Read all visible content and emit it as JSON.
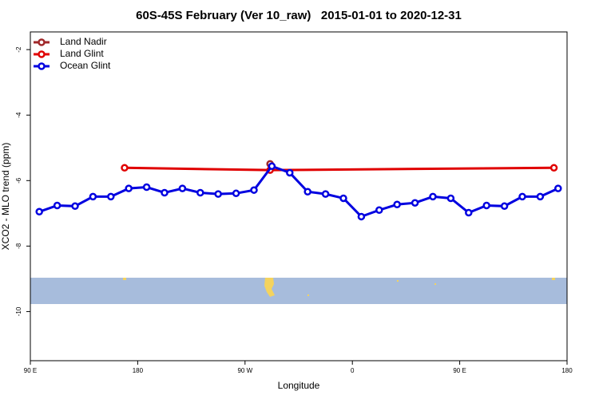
{
  "chart_data": {
    "type": "line",
    "title": "60S-45S February (Ver 10_raw)   2015-01-01 to 2020-12-31",
    "xlabel": "Longitude",
    "ylabel": "XCO2 - MLO trend (ppm)",
    "xlim": [
      90,
      540
    ],
    "xticks": [
      {
        "value": 90,
        "label": "90 E"
      },
      180,
      {
        "value": 270,
        "label": "90 W"
      },
      {
        "value": 360,
        "label": "0"
      },
      {
        "value": 450,
        "label": "90 E"
      },
      {
        "value": 540,
        "label": "180"
      }
    ],
    "ylim": [
      -11.5,
      -1.46
    ],
    "yticks": [
      -2,
      -4,
      -6,
      -8,
      -10
    ],
    "legend": "top-left",
    "series": [
      {
        "name": "Land Nadir",
        "color": "#a0282a",
        "x": [
          291
        ],
        "values": [
          -5.49
        ]
      },
      {
        "name": "Land Glint",
        "color": "#e00000",
        "x": [
          169,
          291,
          529
        ],
        "values": [
          -5.61,
          -5.68,
          -5.61
        ]
      },
      {
        "name": "Ocean Glint",
        "color": "#0000e0",
        "x": [
          97.5,
          112.5,
          127.5,
          142.5,
          157.5,
          172.5,
          187.5,
          202.5,
          217.5,
          232.5,
          247.5,
          262.5,
          277.5,
          292.5,
          307.5,
          322.5,
          337.5,
          352.5,
          367.5,
          382.5,
          397.5,
          412.5,
          427.5,
          442.5,
          457.5,
          472.5,
          487.5,
          502.5,
          517.5,
          532.5
        ],
        "values": [
          -6.95,
          -6.76,
          -6.78,
          -6.49,
          -6.49,
          -6.24,
          -6.2,
          -6.37,
          -6.24,
          -6.37,
          -6.41,
          -6.39,
          -6.29,
          -5.56,
          -5.76,
          -6.34,
          -6.41,
          -6.54,
          -7.1,
          -6.9,
          -6.73,
          -6.68,
          -6.49,
          -6.54,
          -6.98,
          -6.76,
          -6.78,
          -6.49,
          -6.49,
          -6.24
        ]
      }
    ]
  }
}
